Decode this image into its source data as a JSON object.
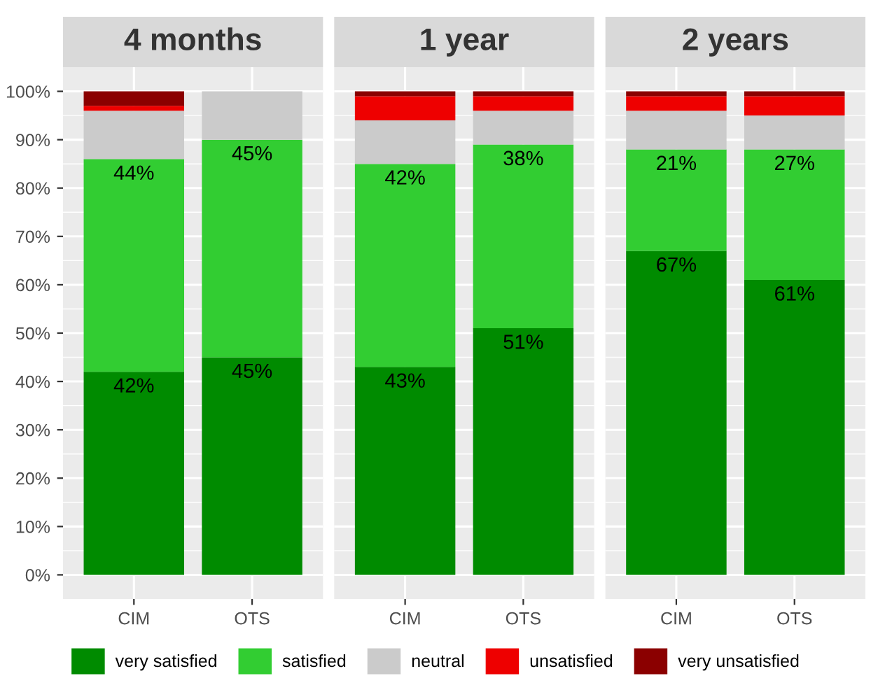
{
  "chart_data": [
    {
      "type": "bar",
      "title": "4 months",
      "categories": [
        "CIM",
        "OTS"
      ],
      "stacked": true,
      "grid": true,
      "legend": "bottom",
      "ylim": [
        -5,
        105
      ],
      "yticks": [
        {
          "value": 0,
          "label": "0%"
        },
        {
          "value": 10,
          "label": "10%"
        },
        {
          "value": 20,
          "label": "20%"
        },
        {
          "value": 30,
          "label": "30%"
        },
        {
          "value": 40,
          "label": "40%"
        },
        {
          "value": 50,
          "label": "50%"
        },
        {
          "value": 60,
          "label": "60%"
        },
        {
          "value": 70,
          "label": "70%"
        },
        {
          "value": 80,
          "label": "80%"
        },
        {
          "value": 90,
          "label": "90%"
        },
        {
          "value": 100,
          "label": "100%"
        }
      ],
      "series": [
        {
          "name": "very satisfied",
          "color": "#008b00",
          "values": [
            42,
            45
          ],
          "value_labels": [
            "42%",
            "45%"
          ]
        },
        {
          "name": "satisfied",
          "color": "#32cd32",
          "values": [
            44,
            45
          ],
          "value_labels": [
            "44%",
            "45%"
          ]
        },
        {
          "name": "neutral",
          "color": "#cbcbcb",
          "values": [
            10,
            10
          ]
        },
        {
          "name": "unsatisfied",
          "color": "#ee0000",
          "values": [
            1,
            0
          ]
        },
        {
          "name": "very unsatisfied",
          "color": "#8b0000",
          "values": [
            3,
            0
          ]
        }
      ]
    },
    {
      "type": "bar",
      "title": "1 year",
      "categories": [
        "CIM",
        "OTS"
      ],
      "stacked": true,
      "grid": true,
      "tick_labels": "x",
      "ylim": [
        -5,
        105
      ],
      "yticks": [
        {
          "value": 0,
          "label": null
        },
        {
          "value": 10,
          "label": null
        },
        {
          "value": 20,
          "label": null
        },
        {
          "value": 30,
          "label": null
        },
        {
          "value": 40,
          "label": null
        },
        {
          "value": 50,
          "label": null
        },
        {
          "value": 60,
          "label": null
        },
        {
          "value": 70,
          "label": null
        },
        {
          "value": 80,
          "label": null
        },
        {
          "value": 90,
          "label": null
        },
        {
          "value": 100,
          "label": null
        }
      ],
      "series": [
        {
          "color": "#008b00",
          "values": [
            43,
            51
          ],
          "value_labels": [
            "43%",
            "51%"
          ]
        },
        {
          "color": "#32cd32",
          "values": [
            42,
            38
          ],
          "value_labels": [
            "42%",
            "38%"
          ]
        },
        {
          "color": "#cbcbcb",
          "values": [
            9,
            7
          ]
        },
        {
          "color": "#ee0000",
          "values": [
            5,
            3
          ]
        },
        {
          "color": "#8b0000",
          "values": [
            1,
            1
          ]
        }
      ]
    },
    {
      "type": "bar",
      "title": "2 years",
      "categories": [
        "CIM",
        "OTS"
      ],
      "stacked": true,
      "grid": true,
      "tick_labels": "x",
      "ylim": [
        -5,
        105
      ],
      "yticks": [
        {
          "value": 0,
          "label": null
        },
        {
          "value": 10,
          "label": null
        },
        {
          "value": 20,
          "label": null
        },
        {
          "value": 30,
          "label": null
        },
        {
          "value": 40,
          "label": null
        },
        {
          "value": 50,
          "label": null
        },
        {
          "value": 60,
          "label": null
        },
        {
          "value": 70,
          "label": null
        },
        {
          "value": 80,
          "label": null
        },
        {
          "value": 90,
          "label": null
        },
        {
          "value": 100,
          "label": null
        }
      ],
      "series": [
        {
          "color": "#008b00",
          "values": [
            67,
            61
          ],
          "value_labels": [
            "67%",
            "61%"
          ]
        },
        {
          "color": "#32cd32",
          "values": [
            21,
            27
          ],
          "value_labels": [
            "21%",
            "27%"
          ]
        },
        {
          "color": "#cbcbcb",
          "values": [
            8,
            7
          ]
        },
        {
          "color": "#ee0000",
          "values": [
            3,
            4
          ]
        },
        {
          "color": "#8b0000",
          "values": [
            1,
            1
          ]
        }
      ]
    }
  ]
}
